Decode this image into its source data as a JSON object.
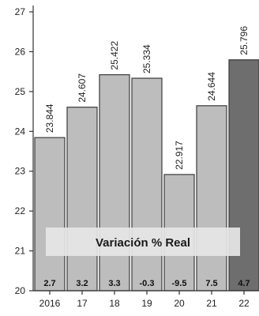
{
  "chart_data": {
    "type": "bar",
    "categories": [
      "2016",
      "17",
      "18",
      "19",
      "20",
      "21",
      "22"
    ],
    "values": [
      23.844,
      24.607,
      25.422,
      25.334,
      22.917,
      24.644,
      25.796
    ],
    "value_labels": [
      "23.844",
      "24.607",
      "25.422",
      "25.334",
      "22.917",
      "24.644",
      "25.796"
    ],
    "real_variation_labels": [
      "2.7",
      "3.2",
      "3.3",
      "-0.3",
      "-9.5",
      "7.5",
      "4.7"
    ],
    "banner_text": "Variación % Real",
    "ylim": [
      20,
      27
    ],
    "yticks": [
      "20",
      "21",
      "22",
      "23",
      "24",
      "25",
      "26",
      "27"
    ],
    "title": "",
    "xlabel": "",
    "ylabel": "",
    "grid": false,
    "colors": {
      "bar": "#bdbdbd",
      "bar_highlight": "#6e6e6e",
      "bar_edge": "#3a3a3a",
      "axis": "#333333",
      "banner": "#e6e6e6"
    }
  }
}
